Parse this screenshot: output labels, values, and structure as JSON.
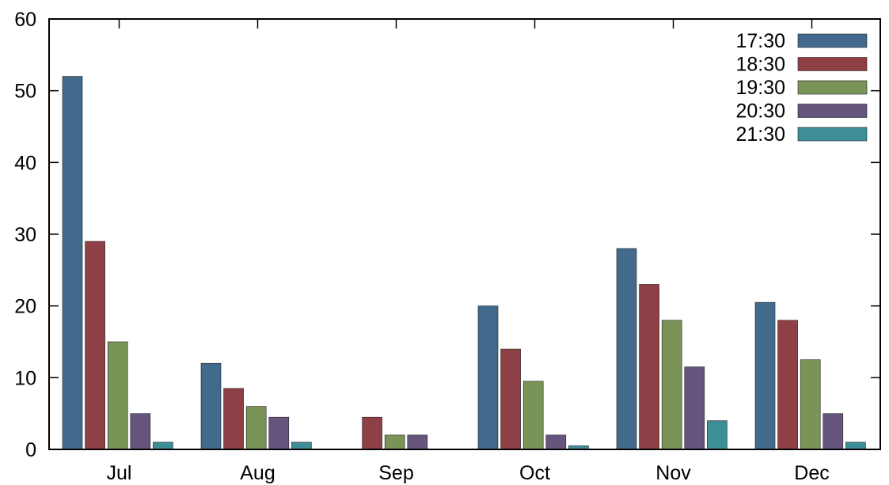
{
  "chart_data": {
    "type": "bar",
    "categories": [
      "Jul",
      "Aug",
      "Sep",
      "Oct",
      "Nov",
      "Dec"
    ],
    "series": [
      {
        "name": "17:30",
        "color": "#426a8d",
        "values": [
          52,
          12,
          0,
          20,
          28,
          20.5
        ]
      },
      {
        "name": "18:30",
        "color": "#8f4046",
        "values": [
          29,
          8.5,
          4.5,
          14,
          23,
          18
        ]
      },
      {
        "name": "19:30",
        "color": "#7a9357",
        "values": [
          15,
          6,
          2,
          9.5,
          18,
          12.5
        ]
      },
      {
        "name": "20:30",
        "color": "#66557d",
        "values": [
          5,
          4.5,
          2,
          2,
          11.5,
          5
        ]
      },
      {
        "name": "21:30",
        "color": "#3e8e98",
        "values": [
          1,
          1,
          0,
          0.5,
          4,
          1
        ]
      }
    ],
    "yticks": [
      "0",
      "10",
      "20",
      "30",
      "40",
      "50",
      "60"
    ],
    "ylim": [
      0,
      60
    ],
    "legend_position": "top-right",
    "grid": false
  }
}
